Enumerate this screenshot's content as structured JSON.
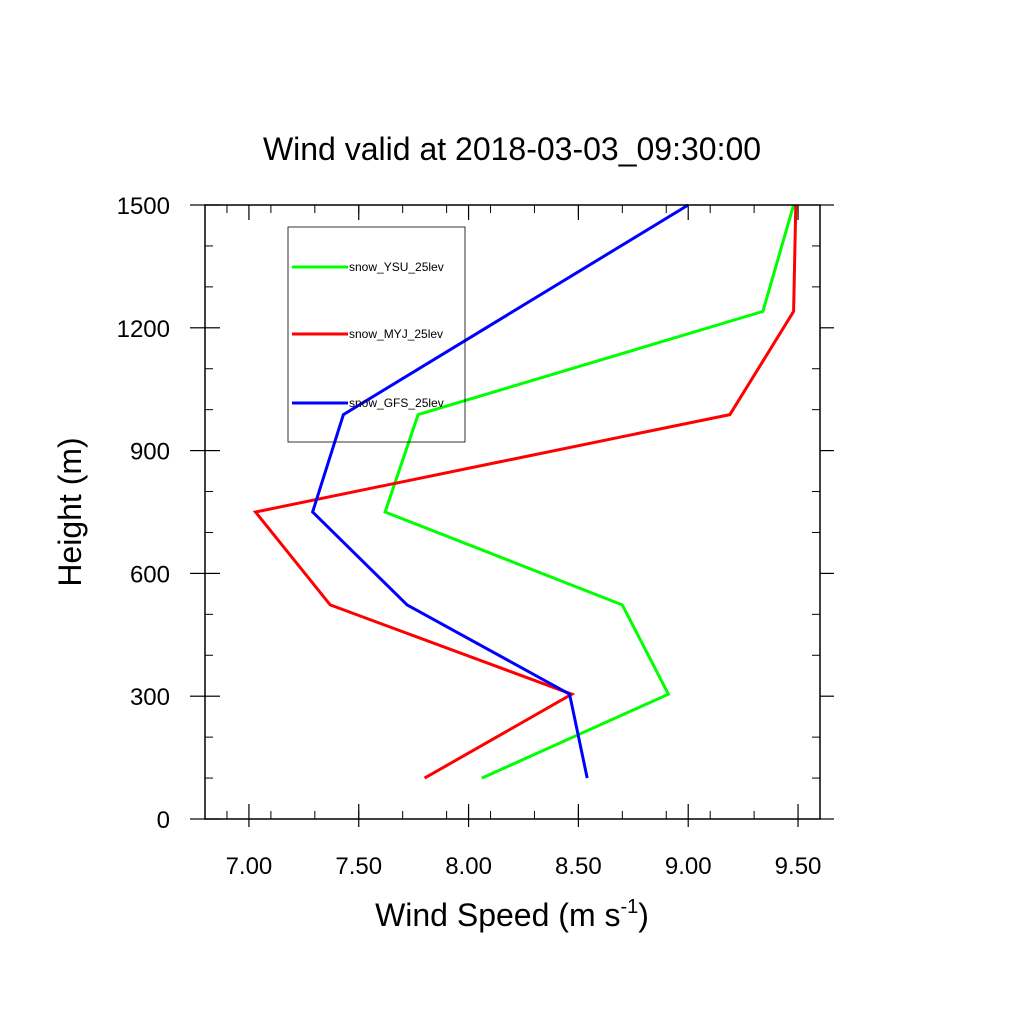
{
  "chart_data": {
    "type": "line",
    "title": "Wind valid at 2018-03-03_09:30:00",
    "xlabel_main": "Wind Speed (m s",
    "xlabel_sup": "-1",
    "xlabel_close": ")",
    "ylabel": "Height (m)",
    "xlim": [
      6.8,
      9.6
    ],
    "ylim": [
      0,
      1500
    ],
    "x_ticks": [
      7.0,
      7.5,
      8.0,
      8.5,
      9.0,
      9.5
    ],
    "x_tick_labels": [
      "7.00",
      "7.50",
      "8.00",
      "8.50",
      "9.00",
      "9.50"
    ],
    "y_ticks": [
      0,
      300,
      600,
      900,
      1200,
      1500
    ],
    "y_tick_labels": [
      "0",
      "300",
      "600",
      "900",
      "1200",
      "1500"
    ],
    "legend_position": "top-left",
    "grid": false,
    "series": [
      {
        "name": "snow_YSU_25lev",
        "color": "#00ff00",
        "points": [
          [
            8.06,
            100
          ],
          [
            8.91,
            305
          ],
          [
            8.7,
            523
          ],
          [
            7.62,
            750
          ],
          [
            7.77,
            988
          ],
          [
            9.34,
            1240
          ],
          [
            9.48,
            1500
          ]
        ]
      },
      {
        "name": "snow_MYJ_25lev",
        "color": "#ff0000",
        "points": [
          [
            7.8,
            100
          ],
          [
            8.47,
            305
          ],
          [
            7.37,
            523
          ],
          [
            7.03,
            750
          ],
          [
            9.19,
            988
          ],
          [
            9.48,
            1240
          ],
          [
            9.49,
            1500
          ]
        ]
      },
      {
        "name": "snow_GFS_25lev",
        "color": "#0000ff",
        "points": [
          [
            8.54,
            100
          ],
          [
            8.46,
            305
          ],
          [
            7.72,
            523
          ],
          [
            7.29,
            750
          ],
          [
            7.43,
            988
          ],
          [
            9.0,
            1500
          ]
        ]
      }
    ]
  }
}
